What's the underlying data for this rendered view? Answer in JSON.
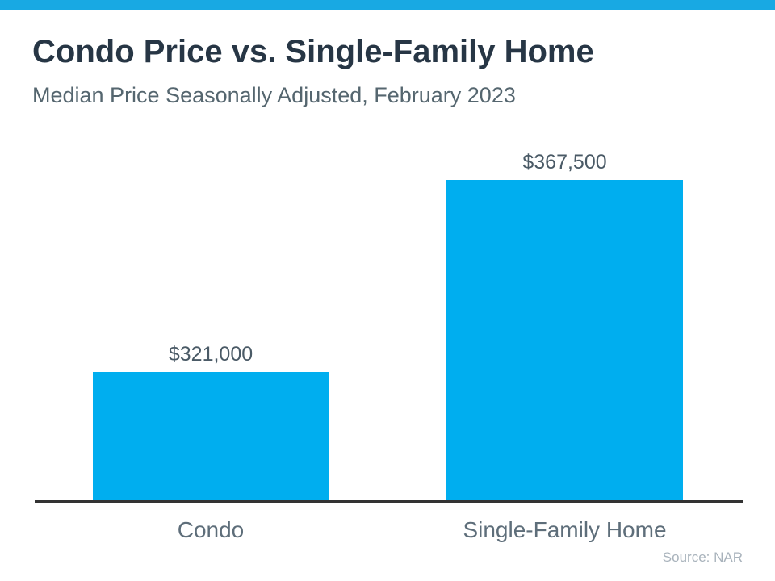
{
  "header": {
    "title": "Condo Price vs. Single-Family Home",
    "subtitle": "Median Price Seasonally Adjusted, February 2023"
  },
  "footer": {
    "source": "Source: NAR"
  },
  "colors": {
    "accent_bar": "#18A9E3",
    "bar_fill": "#00AEEF",
    "title_text": "#273645",
    "subtitle_text": "#55666F",
    "value_label_text": "#4A5A66",
    "category_label_text": "#5E6E7A",
    "axis_line": "#333333",
    "source_text": "#A9B3BC"
  },
  "chart_data": {
    "type": "bar",
    "title": "Condo Price vs. Single-Family Home",
    "subtitle": "Median Price Seasonally Adjusted, February 2023",
    "categories": [
      "Condo",
      "Single-Family Home"
    ],
    "values": [
      321000,
      367500
    ],
    "value_labels": [
      "$321,000",
      "$367,500"
    ],
    "xlabel": "",
    "ylabel": "",
    "ylim": [
      290000,
      375000
    ],
    "grid": false,
    "legend": false,
    "bar_color": "#00AEEF",
    "annotations": [
      "Source: NAR"
    ]
  }
}
